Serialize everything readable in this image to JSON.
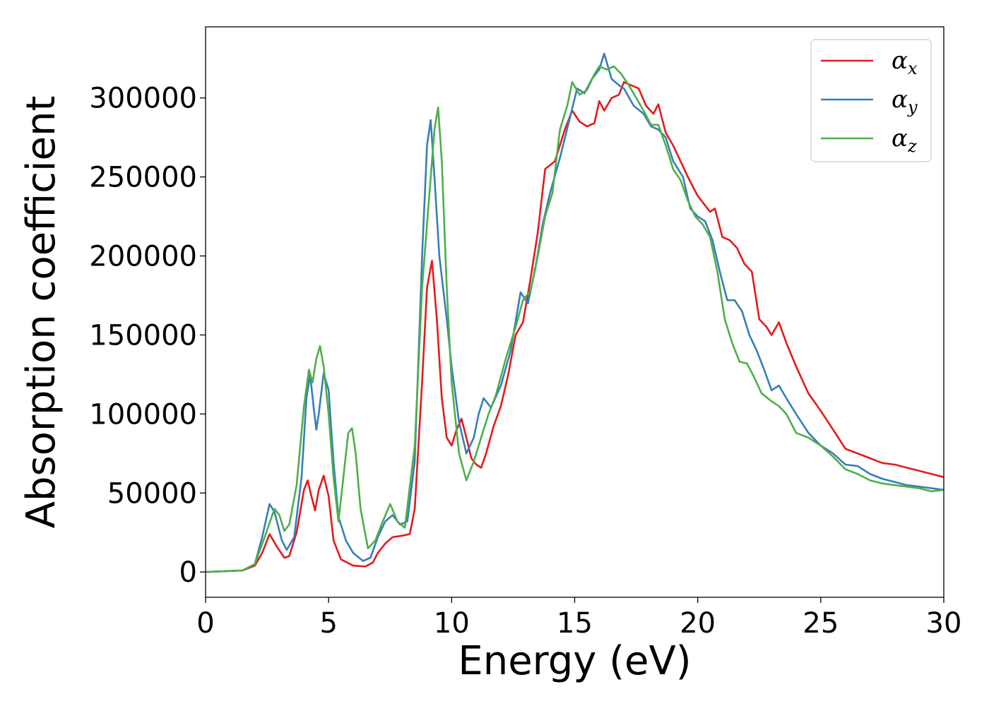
{
  "chart_data": {
    "type": "line",
    "title": "",
    "xlabel": "Energy (eV)",
    "ylabel": "Absorption coefficient",
    "xlim": [
      0,
      30
    ],
    "ylim": [
      -16000,
      345000
    ],
    "xticks": [
      0,
      5,
      10,
      15,
      20,
      25,
      30
    ],
    "yticks": [
      0,
      50000,
      100000,
      150000,
      200000,
      250000,
      300000
    ],
    "grid": false,
    "legend_position": "top-right",
    "series": [
      {
        "name": "α_x",
        "label_main": "α",
        "label_sub": "x",
        "color": "#e41a1c",
        "points": [
          [
            0,
            0
          ],
          [
            1.5,
            1000
          ],
          [
            2.0,
            4000
          ],
          [
            2.3,
            12000
          ],
          [
            2.6,
            24000
          ],
          [
            2.9,
            16000
          ],
          [
            3.2,
            9000
          ],
          [
            3.4,
            10000
          ],
          [
            3.7,
            25000
          ],
          [
            4.0,
            52000
          ],
          [
            4.15,
            58000
          ],
          [
            4.3,
            48000
          ],
          [
            4.45,
            39000
          ],
          [
            4.6,
            52000
          ],
          [
            4.8,
            61000
          ],
          [
            5.0,
            48000
          ],
          [
            5.2,
            20000
          ],
          [
            5.5,
            8000
          ],
          [
            6.0,
            4000
          ],
          [
            6.5,
            3500
          ],
          [
            6.8,
            6000
          ],
          [
            7.0,
            12000
          ],
          [
            7.3,
            18000
          ],
          [
            7.6,
            22000
          ],
          [
            8.0,
            23000
          ],
          [
            8.3,
            24000
          ],
          [
            8.5,
            40000
          ],
          [
            8.8,
            120000
          ],
          [
            9.0,
            180000
          ],
          [
            9.2,
            197000
          ],
          [
            9.4,
            160000
          ],
          [
            9.6,
            110000
          ],
          [
            9.8,
            85000
          ],
          [
            10.0,
            80000
          ],
          [
            10.2,
            90000
          ],
          [
            10.4,
            97000
          ],
          [
            10.6,
            85000
          ],
          [
            10.8,
            72000
          ],
          [
            11.0,
            68000
          ],
          [
            11.2,
            66000
          ],
          [
            11.4,
            75000
          ],
          [
            11.7,
            92000
          ],
          [
            12.0,
            105000
          ],
          [
            12.3,
            125000
          ],
          [
            12.6,
            150000
          ],
          [
            12.9,
            158000
          ],
          [
            13.2,
            185000
          ],
          [
            13.5,
            215000
          ],
          [
            13.8,
            255000
          ],
          [
            14.2,
            260000
          ],
          [
            14.6,
            280000
          ],
          [
            14.9,
            292000
          ],
          [
            15.2,
            285000
          ],
          [
            15.5,
            282000
          ],
          [
            15.8,
            284000
          ],
          [
            16.0,
            298000
          ],
          [
            16.2,
            292000
          ],
          [
            16.5,
            300000
          ],
          [
            16.8,
            302000
          ],
          [
            17.0,
            310000
          ],
          [
            17.3,
            308000
          ],
          [
            17.6,
            306000
          ],
          [
            17.9,
            295000
          ],
          [
            18.2,
            290000
          ],
          [
            18.4,
            296000
          ],
          [
            18.7,
            278000
          ],
          [
            19.0,
            270000
          ],
          [
            19.3,
            260000
          ],
          [
            19.6,
            250000
          ],
          [
            20.0,
            238000
          ],
          [
            20.3,
            232000
          ],
          [
            20.5,
            228000
          ],
          [
            20.7,
            230000
          ],
          [
            21.0,
            212000
          ],
          [
            21.3,
            210000
          ],
          [
            21.6,
            205000
          ],
          [
            21.9,
            195000
          ],
          [
            22.2,
            190000
          ],
          [
            22.5,
            160000
          ],
          [
            22.8,
            155000
          ],
          [
            23.0,
            150000
          ],
          [
            23.3,
            158000
          ],
          [
            23.6,
            145000
          ],
          [
            24.0,
            130000
          ],
          [
            24.5,
            113000
          ],
          [
            25.0,
            102000
          ],
          [
            25.5,
            90000
          ],
          [
            26.0,
            78000
          ],
          [
            26.5,
            75000
          ],
          [
            27.0,
            72000
          ],
          [
            27.5,
            69000
          ],
          [
            28.0,
            68000
          ],
          [
            28.5,
            66000
          ],
          [
            29.0,
            64000
          ],
          [
            29.5,
            62000
          ],
          [
            30.0,
            60000
          ]
        ]
      },
      {
        "name": "α_y",
        "label_main": "α",
        "label_sub": "y",
        "color": "#377eb8",
        "points": [
          [
            0,
            0
          ],
          [
            1.5,
            1000
          ],
          [
            2.0,
            5000
          ],
          [
            2.3,
            22000
          ],
          [
            2.6,
            43000
          ],
          [
            2.8,
            38000
          ],
          [
            3.1,
            20000
          ],
          [
            3.3,
            14000
          ],
          [
            3.6,
            22000
          ],
          [
            3.9,
            60000
          ],
          [
            4.1,
            110000
          ],
          [
            4.25,
            125000
          ],
          [
            4.4,
            103000
          ],
          [
            4.5,
            90000
          ],
          [
            4.6,
            100000
          ],
          [
            4.8,
            126000
          ],
          [
            5.0,
            115000
          ],
          [
            5.2,
            70000
          ],
          [
            5.4,
            35000
          ],
          [
            5.7,
            20000
          ],
          [
            6.0,
            12000
          ],
          [
            6.4,
            7000
          ],
          [
            6.7,
            9000
          ],
          [
            7.0,
            22000
          ],
          [
            7.3,
            32000
          ],
          [
            7.6,
            36000
          ],
          [
            7.9,
            30000
          ],
          [
            8.2,
            32000
          ],
          [
            8.5,
            70000
          ],
          [
            8.8,
            200000
          ],
          [
            9.0,
            270000
          ],
          [
            9.15,
            286000
          ],
          [
            9.3,
            250000
          ],
          [
            9.5,
            200000
          ],
          [
            9.8,
            160000
          ],
          [
            10.0,
            130000
          ],
          [
            10.3,
            95000
          ],
          [
            10.6,
            75000
          ],
          [
            10.9,
            85000
          ],
          [
            11.1,
            100000
          ],
          [
            11.3,
            110000
          ],
          [
            11.6,
            104000
          ],
          [
            12.0,
            118000
          ],
          [
            12.4,
            140000
          ],
          [
            12.8,
            177000
          ],
          [
            13.1,
            170000
          ],
          [
            13.4,
            192000
          ],
          [
            13.7,
            220000
          ],
          [
            14.0,
            240000
          ],
          [
            14.4,
            262000
          ],
          [
            14.8,
            287000
          ],
          [
            15.1,
            306000
          ],
          [
            15.4,
            303000
          ],
          [
            15.7,
            312000
          ],
          [
            16.0,
            318000
          ],
          [
            16.2,
            328000
          ],
          [
            16.5,
            312000
          ],
          [
            16.8,
            308000
          ],
          [
            17.0,
            306000
          ],
          [
            17.4,
            295000
          ],
          [
            17.8,
            290000
          ],
          [
            18.1,
            282000
          ],
          [
            18.4,
            280000
          ],
          [
            18.7,
            275000
          ],
          [
            19.0,
            260000
          ],
          [
            19.4,
            250000
          ],
          [
            19.7,
            230000
          ],
          [
            20.0,
            225000
          ],
          [
            20.3,
            222000
          ],
          [
            20.6,
            210000
          ],
          [
            20.9,
            190000
          ],
          [
            21.2,
            172000
          ],
          [
            21.5,
            172000
          ],
          [
            21.8,
            165000
          ],
          [
            22.1,
            150000
          ],
          [
            22.4,
            140000
          ],
          [
            22.7,
            128000
          ],
          [
            23.0,
            115000
          ],
          [
            23.3,
            118000
          ],
          [
            23.6,
            110000
          ],
          [
            24.0,
            100000
          ],
          [
            24.5,
            88000
          ],
          [
            25.0,
            80000
          ],
          [
            25.5,
            75000
          ],
          [
            26.0,
            68000
          ],
          [
            26.5,
            67000
          ],
          [
            27.0,
            62000
          ],
          [
            27.5,
            59000
          ],
          [
            28.0,
            57000
          ],
          [
            28.5,
            55000
          ],
          [
            29.0,
            54000
          ],
          [
            29.5,
            53000
          ],
          [
            30.0,
            52000
          ]
        ]
      },
      {
        "name": "α_z",
        "label_main": "α",
        "label_sub": "z",
        "color": "#4daf4a",
        "points": [
          [
            0,
            0
          ],
          [
            1.5,
            1000
          ],
          [
            2.0,
            5000
          ],
          [
            2.4,
            22000
          ],
          [
            2.8,
            40000
          ],
          [
            3.0,
            36000
          ],
          [
            3.2,
            26000
          ],
          [
            3.4,
            30000
          ],
          [
            3.7,
            55000
          ],
          [
            4.0,
            105000
          ],
          [
            4.2,
            128000
          ],
          [
            4.35,
            120000
          ],
          [
            4.5,
            135000
          ],
          [
            4.65,
            143000
          ],
          [
            4.8,
            130000
          ],
          [
            5.0,
            100000
          ],
          [
            5.2,
            60000
          ],
          [
            5.4,
            32000
          ],
          [
            5.6,
            60000
          ],
          [
            5.8,
            88000
          ],
          [
            5.95,
            91000
          ],
          [
            6.1,
            75000
          ],
          [
            6.3,
            40000
          ],
          [
            6.6,
            15000
          ],
          [
            6.9,
            20000
          ],
          [
            7.2,
            32000
          ],
          [
            7.5,
            43000
          ],
          [
            7.8,
            32000
          ],
          [
            8.1,
            28000
          ],
          [
            8.5,
            80000
          ],
          [
            8.8,
            180000
          ],
          [
            9.1,
            240000
          ],
          [
            9.3,
            280000
          ],
          [
            9.45,
            294000
          ],
          [
            9.6,
            260000
          ],
          [
            9.8,
            180000
          ],
          [
            10.0,
            120000
          ],
          [
            10.3,
            75000
          ],
          [
            10.6,
            58000
          ],
          [
            10.9,
            70000
          ],
          [
            11.2,
            85000
          ],
          [
            11.5,
            100000
          ],
          [
            11.8,
            112000
          ],
          [
            12.2,
            135000
          ],
          [
            12.6,
            155000
          ],
          [
            12.9,
            172000
          ],
          [
            13.2,
            178000
          ],
          [
            13.5,
            200000
          ],
          [
            13.8,
            225000
          ],
          [
            14.1,
            240000
          ],
          [
            14.4,
            280000
          ],
          [
            14.7,
            295000
          ],
          [
            14.9,
            310000
          ],
          [
            15.2,
            302000
          ],
          [
            15.5,
            305000
          ],
          [
            15.8,
            315000
          ],
          [
            16.0,
            320000
          ],
          [
            16.3,
            318000
          ],
          [
            16.6,
            320000
          ],
          [
            16.9,
            315000
          ],
          [
            17.2,
            308000
          ],
          [
            17.5,
            300000
          ],
          [
            17.8,
            292000
          ],
          [
            18.1,
            283000
          ],
          [
            18.4,
            283000
          ],
          [
            18.7,
            270000
          ],
          [
            19.0,
            255000
          ],
          [
            19.3,
            248000
          ],
          [
            19.6,
            235000
          ],
          [
            19.9,
            225000
          ],
          [
            20.2,
            220000
          ],
          [
            20.5,
            212000
          ],
          [
            20.8,
            190000
          ],
          [
            21.1,
            160000
          ],
          [
            21.4,
            145000
          ],
          [
            21.7,
            133000
          ],
          [
            22.0,
            132000
          ],
          [
            22.3,
            123000
          ],
          [
            22.6,
            113000
          ],
          [
            23.0,
            108000
          ],
          [
            23.3,
            105000
          ],
          [
            23.6,
            100000
          ],
          [
            24.0,
            88000
          ],
          [
            24.5,
            85000
          ],
          [
            25.0,
            80000
          ],
          [
            25.5,
            73000
          ],
          [
            26.0,
            65000
          ],
          [
            26.5,
            62000
          ],
          [
            27.0,
            58000
          ],
          [
            27.5,
            56000
          ],
          [
            28.0,
            55000
          ],
          [
            28.5,
            54000
          ],
          [
            29.0,
            53000
          ],
          [
            29.5,
            51000
          ],
          [
            30.0,
            52000
          ]
        ]
      }
    ]
  }
}
